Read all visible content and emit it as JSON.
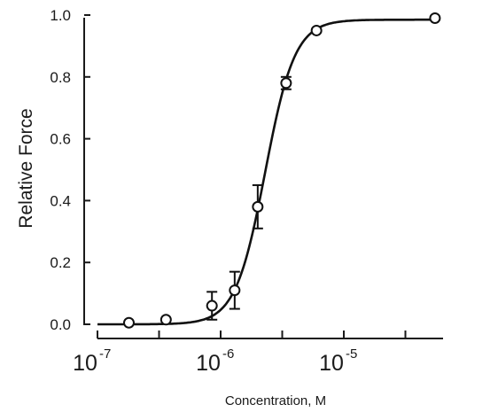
{
  "chart_data": {
    "type": "scatter",
    "xlabel": "Concentration, M",
    "ylabel": "Relative Force",
    "x_scale": "log",
    "xlim": [
      1e-07,
      6e-05
    ],
    "ylim": [
      0,
      1.0
    ],
    "x_tick_labels": [
      {
        "base": "10",
        "exp": "-7",
        "value": 1e-07
      },
      {
        "base": "10",
        "exp": "-6",
        "value": 1e-06
      },
      {
        "base": "10",
        "exp": "-5",
        "value": 1e-05
      }
    ],
    "y_tick_labels": [
      "0.0",
      "0.2",
      "0.4",
      "0.6",
      "0.8",
      "1.0"
    ],
    "y_ticks": [
      0,
      0.2,
      0.4,
      0.6,
      0.8,
      1.0
    ],
    "series": [
      {
        "marker": "open-circle",
        "points": [
          {
            "x": 1.8e-07,
            "y": 0.005,
            "err": 0
          },
          {
            "x": 3.6e-07,
            "y": 0.015,
            "err": 0
          },
          {
            "x": 8.5e-07,
            "y": 0.06,
            "err": 0.045
          },
          {
            "x": 1.3e-06,
            "y": 0.11,
            "err": 0.06
          },
          {
            "x": 2e-06,
            "y": 0.38,
            "err": 0.07
          },
          {
            "x": 3.4e-06,
            "y": 0.78,
            "err": 0.02
          },
          {
            "x": 6e-06,
            "y": 0.95,
            "err": 0
          },
          {
            "x": 5.5e-05,
            "y": 0.99,
            "err": 0
          }
        ]
      }
    ],
    "fit": {
      "type": "hill",
      "bottom": 0.0,
      "top": 0.985,
      "ec50": 2.3e-06,
      "hill_n": 3.6
    },
    "grid": false,
    "legend": "none"
  }
}
